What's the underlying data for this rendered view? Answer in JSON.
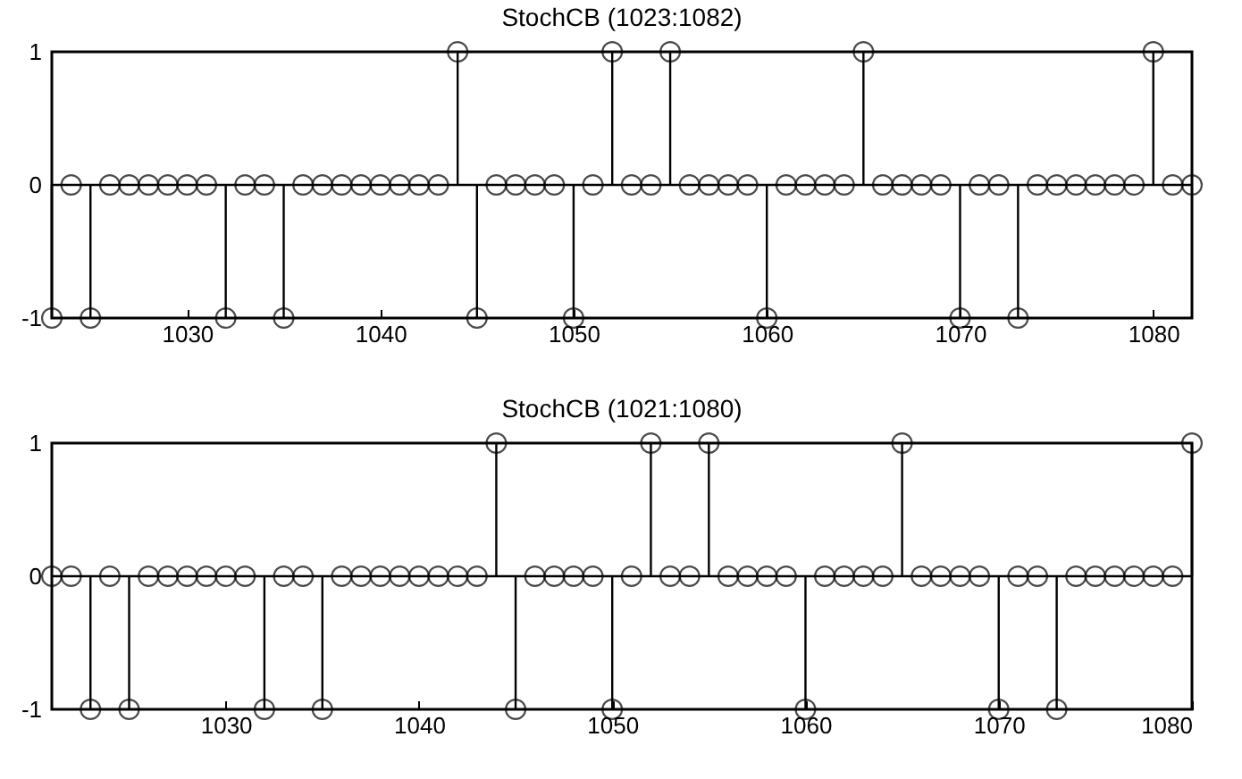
{
  "chart_data": [
    {
      "type": "lollipop",
      "title": "StochCB (1023:1082)",
      "x": [
        1023,
        1024,
        1025,
        1026,
        1027,
        1028,
        1029,
        1030,
        1031,
        1032,
        1033,
        1034,
        1035,
        1036,
        1037,
        1038,
        1039,
        1040,
        1041,
        1042,
        1043,
        1044,
        1045,
        1046,
        1047,
        1048,
        1049,
        1050,
        1051,
        1052,
        1053,
        1054,
        1055,
        1056,
        1057,
        1058,
        1059,
        1060,
        1061,
        1062,
        1063,
        1064,
        1065,
        1066,
        1067,
        1068,
        1069,
        1070,
        1071,
        1072,
        1073,
        1074,
        1075,
        1076,
        1077,
        1078,
        1079,
        1080,
        1081,
        1082
      ],
      "series": [
        {
          "color": "#000000",
          "values": [
            -1,
            0,
            -1,
            0,
            0,
            0,
            0,
            0,
            0,
            -1,
            0,
            0,
            -1,
            0,
            0,
            0,
            0,
            0,
            0,
            0,
            0,
            1,
            -1,
            0,
            0,
            0,
            0,
            -1,
            0,
            1,
            0,
            0,
            1,
            0,
            0,
            0,
            0,
            -1,
            0,
            0,
            0,
            0,
            1,
            0,
            0,
            0,
            0,
            -1,
            0,
            0,
            -1,
            0,
            0,
            0,
            0,
            0,
            0,
            1,
            0,
            0
          ]
        }
      ],
      "xlim": [
        1023,
        1082
      ],
      "xticks": [
        1030,
        1040,
        1050,
        1060,
        1070,
        1080
      ],
      "ylim": [
        -1,
        1
      ],
      "yticks": [
        -1,
        0,
        1
      ],
      "ref_lines": [
        {
          "axis": "y",
          "value": 0,
          "color": "#000000"
        }
      ],
      "marker": "circle",
      "grid": false
    },
    {
      "type": "lollipop",
      "title": "StochCB (1021:1080)",
      "x": [
        1021,
        1022,
        1023,
        1024,
        1025,
        1026,
        1027,
        1028,
        1029,
        1030,
        1031,
        1032,
        1033,
        1034,
        1035,
        1036,
        1037,
        1038,
        1039,
        1040,
        1041,
        1042,
        1043,
        1044,
        1045,
        1046,
        1047,
        1048,
        1049,
        1050,
        1051,
        1052,
        1053,
        1054,
        1055,
        1056,
        1057,
        1058,
        1059,
        1060,
        1061,
        1062,
        1063,
        1064,
        1065,
        1066,
        1067,
        1068,
        1069,
        1070,
        1071,
        1072,
        1073,
        1074,
        1075,
        1076,
        1077,
        1078,
        1079,
        1080
      ],
      "series": [
        {
          "color": "#000000",
          "values": [
            0,
            0,
            -1,
            0,
            -1,
            0,
            0,
            0,
            0,
            0,
            0,
            -1,
            0,
            0,
            -1,
            0,
            0,
            0,
            0,
            0,
            0,
            0,
            0,
            1,
            -1,
            0,
            0,
            0,
            0,
            -1,
            0,
            1,
            0,
            0,
            1,
            0,
            0,
            0,
            0,
            -1,
            0,
            0,
            0,
            0,
            1,
            0,
            0,
            0,
            0,
            -1,
            0,
            0,
            -1,
            0,
            0,
            0,
            0,
            0,
            0,
            1
          ]
        }
      ],
      "xlim": [
        1021,
        1080
      ],
      "xticks": [
        1030,
        1040,
        1050,
        1060,
        1070,
        1080
      ],
      "ylim": [
        -1,
        1
      ],
      "yticks": [
        -1,
        0,
        1
      ],
      "ref_lines": [
        {
          "axis": "y",
          "value": 0,
          "color": "#000000"
        }
      ],
      "marker": "circle",
      "grid": false
    }
  ]
}
